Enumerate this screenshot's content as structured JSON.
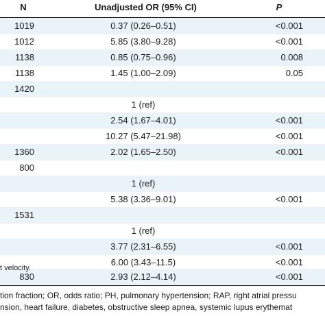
{
  "header": {
    "n": "N",
    "or": "Unadjusted OR (95% CI)",
    "p": "P"
  },
  "rows": [
    {
      "n": "1019",
      "or": "0.37 (0.26–0.51)",
      "p": "<0.001"
    },
    {
      "n": "1012",
      "or": "5.85 (3.80–9.28)",
      "p": "<0.001"
    },
    {
      "n": "1138",
      "or": "0.85 (0.75–0.96)",
      "p": "0.008"
    },
    {
      "n": "1138",
      "or": "1.45 (1.00–2.09)",
      "p": "0.05"
    },
    {
      "n": "1420",
      "or": "",
      "p": ""
    },
    {
      "n": "",
      "or": "1 (ref)",
      "p": ""
    },
    {
      "n": "",
      "or": "2.54 (1.67–4.01)",
      "p": "<0.001"
    },
    {
      "n": "",
      "or": "10.27 (5.47–21.98)",
      "p": "<0.001"
    },
    {
      "n": "1360",
      "or": "2.02 (1.65–2.50)",
      "p": "<0.001"
    },
    {
      "n": "800",
      "or": "",
      "p": ""
    },
    {
      "n": "",
      "or": "1 (ref)",
      "p": ""
    },
    {
      "n": "",
      "or": "5.38 (3.36–9.01)",
      "p": "<0.001"
    },
    {
      "n": "1531",
      "or": "",
      "p": ""
    },
    {
      "n": "",
      "or": "1 (ref)",
      "p": ""
    },
    {
      "n": "",
      "or": "3.77 (2.31–6.55)",
      "p": "<0.001"
    },
    {
      "n": "",
      "or": "6.00 (3.43–11.5)",
      "p": "<0.001"
    },
    {
      "n": "830",
      "or": "2.93 (2.12–4.14)",
      "p": "<0.001"
    }
  ],
  "footnotes": [
    "t velocity.",
    "tion fraction; OR, odds ratio; PH, pulmonary hypertension; RAP, right atrial pressu",
    "nsion, heart failure, diabetes, obstructive sleep apnea, systemic lupus erythemat"
  ],
  "colors": {
    "shaded_row": "#eaf4f8",
    "rule": "#1f1f1f"
  }
}
